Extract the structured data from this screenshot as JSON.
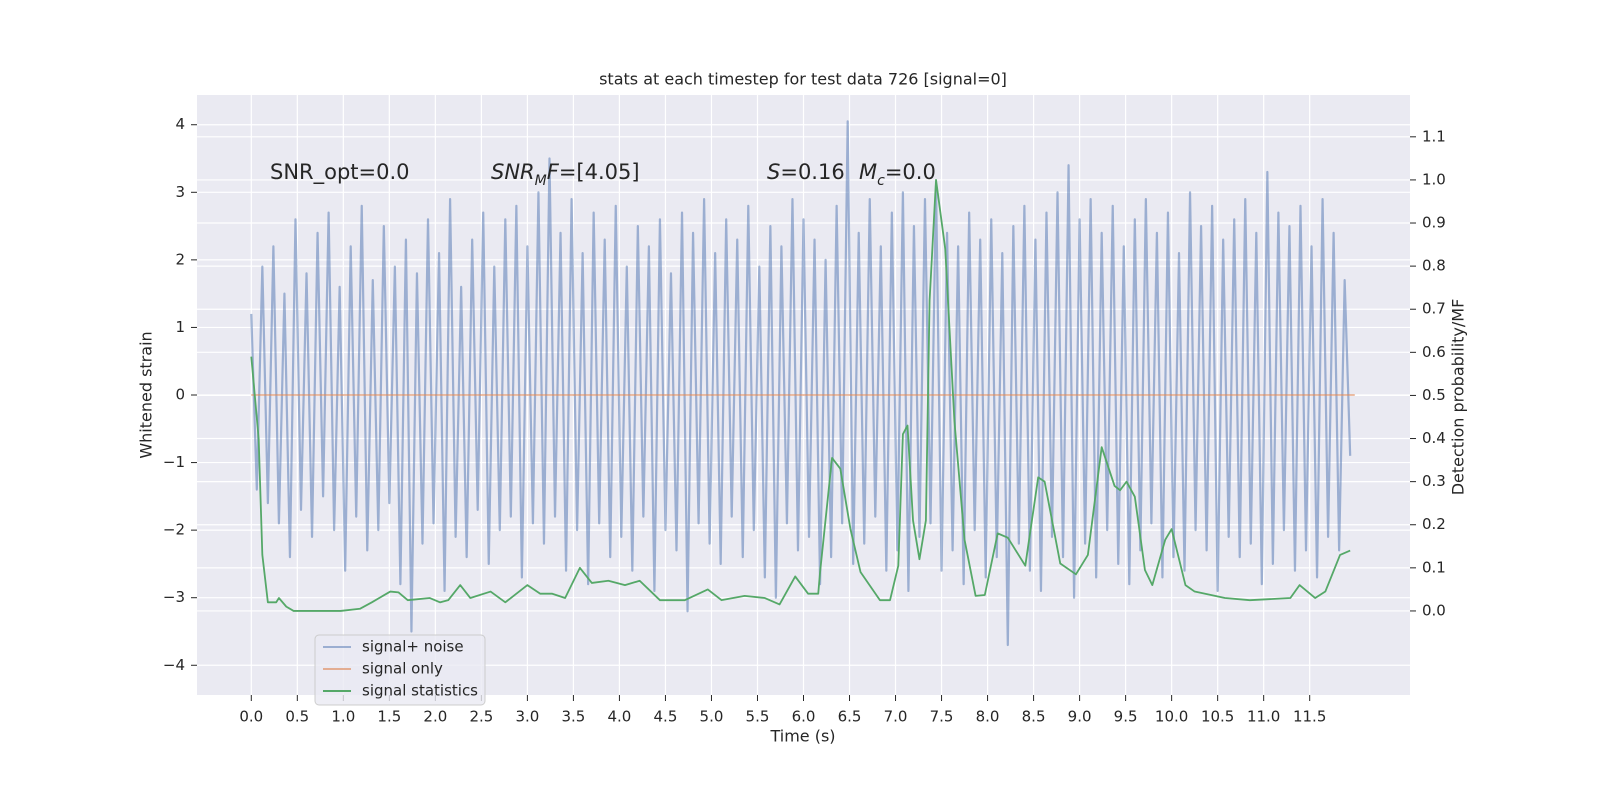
{
  "chart_data": {
    "type": "line",
    "title": "stats at each timestep for test data 726 [signal=0]",
    "xlabel": "Time (s)",
    "ylabel": "Whitened strain",
    "y2label": "Detection probability/MF",
    "xlim": [
      -0.59,
      12.59
    ],
    "ylim": [
      -4.44,
      4.44
    ],
    "y2lim": [
      -0.195,
      1.197
    ],
    "xticks": [
      {
        "value": 0,
        "label": "0.0"
      },
      0.5,
      {
        "value": 1,
        "label": "1.0"
      },
      1.5,
      {
        "value": 2,
        "label": "2.0"
      },
      2.5,
      {
        "value": 3,
        "label": "3.0"
      },
      3.5,
      {
        "value": 4,
        "label": "4.0"
      },
      4.5,
      {
        "value": 5,
        "label": "5.0"
      },
      5.5,
      {
        "value": 6,
        "label": "6.0"
      },
      6.5,
      {
        "value": 7,
        "label": "7.0"
      },
      7.5,
      {
        "value": 8,
        "label": "8.0"
      },
      8.5,
      {
        "value": 9,
        "label": "9.0"
      },
      9.5,
      {
        "value": 10,
        "label": "10.0"
      },
      10.5,
      {
        "value": 11,
        "label": "11.0"
      },
      11.5
    ],
    "yticks": [
      {
        "value": -4,
        "label": "−4"
      },
      {
        "value": -3,
        "label": "−3"
      },
      {
        "value": -2,
        "label": "−2"
      },
      {
        "value": -1,
        "label": "−1"
      },
      0,
      1,
      2,
      3,
      4
    ],
    "y2ticks": [
      {
        "value": 0,
        "label": "0.0"
      },
      0.1,
      0.2,
      0.3,
      0.4,
      0.5,
      0.6,
      0.7,
      0.8,
      0.9,
      {
        "value": 1,
        "label": "1.0"
      },
      1.1
    ],
    "grid": true,
    "y2grid": true,
    "background": "#eaeaf2",
    "legend": "lower left",
    "annotations": [
      [
        {
          "text": "SNR_opt=0.0"
        }
      ],
      [
        {
          "text": "SNR",
          "style": "italic"
        },
        {
          "text": "M",
          "style": "italic-sub"
        },
        {
          "text": "F",
          "style": "italic"
        },
        {
          "text": "=[4.05]"
        }
      ],
      [
        {
          "text": "S",
          "style": "italic"
        },
        {
          "text": "=0.16"
        }
      ],
      [
        {
          "text": "M",
          "style": "italic"
        },
        {
          "text": "c",
          "style": "italic-sub"
        },
        {
          "text": "=0.0"
        }
      ]
    ],
    "series": [
      {
        "name": "signal+ noise",
        "color": "#4c72b0",
        "opacity": 0.5,
        "axis": "y",
        "x": [
          0,
          0.06,
          0.12,
          0.18,
          0.24,
          0.3,
          0.36,
          0.42,
          0.48,
          0.54,
          0.6,
          0.66,
          0.72,
          0.78,
          0.84,
          0.9,
          0.96,
          1.02,
          1.08,
          1.14,
          1.2,
          1.26,
          1.32,
          1.38,
          1.44,
          1.5,
          1.56,
          1.62,
          1.68,
          1.74,
          1.8,
          1.86,
          1.92,
          1.98,
          2.04,
          2.1,
          2.16,
          2.22,
          2.28,
          2.34,
          2.4,
          2.46,
          2.52,
          2.58,
          2.64,
          2.7,
          2.76,
          2.82,
          2.88,
          2.94,
          3,
          3.06,
          3.12,
          3.18,
          3.24,
          3.3,
          3.36,
          3.42,
          3.48,
          3.54,
          3.6,
          3.66,
          3.72,
          3.78,
          3.84,
          3.9,
          3.96,
          4.02,
          4.08,
          4.14,
          4.2,
          4.26,
          4.32,
          4.38,
          4.44,
          4.5,
          4.56,
          4.62,
          4.68,
          4.74,
          4.8,
          4.86,
          4.92,
          4.98,
          5.04,
          5.1,
          5.16,
          5.22,
          5.28,
          5.34,
          5.4,
          5.46,
          5.52,
          5.58,
          5.64,
          5.7,
          5.76,
          5.82,
          5.88,
          5.94,
          6,
          6.06,
          6.12,
          6.18,
          6.24,
          6.3,
          6.36,
          6.42,
          6.48,
          6.54,
          6.6,
          6.66,
          6.72,
          6.78,
          6.84,
          6.9,
          6.96,
          7.02,
          7.08,
          7.14,
          7.2,
          7.26,
          7.32,
          7.38,
          7.44,
          7.5,
          7.56,
          7.62,
          7.68,
          7.74,
          7.8,
          7.86,
          7.92,
          7.98,
          8.04,
          8.1,
          8.16,
          8.22,
          8.28,
          8.34,
          8.4,
          8.46,
          8.52,
          8.58,
          8.64,
          8.7,
          8.76,
          8.82,
          8.88,
          8.94,
          9,
          9.06,
          9.12,
          9.18,
          9.24,
          9.3,
          9.36,
          9.42,
          9.48,
          9.54,
          9.6,
          9.66,
          9.72,
          9.78,
          9.84,
          9.9,
          9.96,
          10.02,
          10.08,
          10.14,
          10.2,
          10.26,
          10.32,
          10.38,
          10.44,
          10.5,
          10.56,
          10.62,
          10.68,
          10.74,
          10.8,
          10.86,
          10.92,
          10.98,
          11.04,
          11.1,
          11.16,
          11.22,
          11.28,
          11.34,
          11.4,
          11.46,
          11.52,
          11.58,
          11.64,
          11.7,
          11.76,
          11.82,
          11.88,
          11.94
        ],
        "values": [
          1.2,
          -1.4,
          1.9,
          -1.6,
          2.2,
          -1.9,
          1.5,
          -2.4,
          2.6,
          -1.7,
          1.8,
          -2.1,
          2.4,
          -1.5,
          2.7,
          -2.0,
          1.6,
          -2.6,
          2.2,
          -1.8,
          2.8,
          -2.3,
          1.7,
          -2.0,
          2.5,
          -1.6,
          1.9,
          -2.8,
          2.3,
          -3.5,
          1.8,
          -2.2,
          2.6,
          -1.9,
          2.1,
          -2.9,
          2.9,
          -2.1,
          1.6,
          -2.4,
          2.3,
          -1.7,
          2.7,
          -2.5,
          1.9,
          -2.0,
          2.6,
          -1.8,
          2.8,
          -2.7,
          2.2,
          -1.9,
          3.0,
          -2.2,
          3.5,
          -1.8,
          2.4,
          -2.6,
          2.9,
          -2.0,
          2.1,
          -2.8,
          2.7,
          -1.9,
          2.3,
          -2.4,
          2.8,
          -2.1,
          1.9,
          -2.6,
          2.5,
          -1.8,
          2.2,
          -2.9,
          2.6,
          -2.0,
          1.8,
          -2.3,
          2.7,
          -3.2,
          2.4,
          -1.9,
          2.9,
          -2.2,
          2.1,
          -2.5,
          2.6,
          -1.8,
          2.3,
          -2.4,
          2.8,
          -2.0,
          1.9,
          -2.7,
          2.5,
          -3.0,
          2.2,
          -1.9,
          2.9,
          -2.3,
          2.6,
          -2.1,
          2.3,
          -2.8,
          2.0,
          -2.4,
          2.8,
          -1.9,
          4.05,
          -2.5,
          2.4,
          -2.2,
          2.9,
          -1.8,
          2.2,
          -2.6,
          2.7,
          -2.3,
          3.0,
          -2.9,
          2.5,
          -2.1,
          2.9,
          -1.9,
          3.1,
          -2.6,
          2.4,
          -2.3,
          2.2,
          -2.8,
          2.7,
          -2.0,
          2.3,
          -2.7,
          2.6,
          -2.4,
          2.1,
          -3.7,
          2.5,
          -2.2,
          2.8,
          -2.6,
          2.3,
          -2.9,
          2.7,
          -2.1,
          3.0,
          -2.4,
          3.4,
          -3.0,
          2.6,
          -2.2,
          2.9,
          -2.7,
          2.4,
          -2.0,
          2.8,
          -2.5,
          2.2,
          -2.8,
          2.6,
          -2.3,
          2.9,
          -1.9,
          2.4,
          -2.7,
          2.7,
          -2.4,
          2.1,
          -2.6,
          3.0,
          -2.0,
          2.5,
          -2.3,
          2.8,
          -2.9,
          2.3,
          -2.1,
          2.6,
          -2.4,
          2.9,
          -2.2,
          2.4,
          -2.8,
          3.3,
          -2.5,
          2.7,
          -2.0,
          2.5,
          -2.6,
          2.8,
          -2.3,
          2.2,
          -2.7,
          2.9,
          -2.1,
          2.4,
          -2.3,
          1.7,
          -0.9
        ]
      },
      {
        "name": "signal only",
        "color": "#dd8452",
        "opacity": 0.6,
        "axis": "y",
        "x": [
          0,
          11.99
        ],
        "values": [
          0,
          0
        ]
      },
      {
        "name": "signal statistics",
        "color": "#55a868",
        "opacity": 1,
        "axis": "y2",
        "x": [
          0,
          0.08,
          0.12,
          0.18,
          0.27,
          0.3,
          0.38,
          0.46,
          0.64,
          0.97,
          1.18,
          1.31,
          1.51,
          1.6,
          1.7,
          1.94,
          2.05,
          2.14,
          2.27,
          2.38,
          2.6,
          2.76,
          3.0,
          3.14,
          3.27,
          3.41,
          3.57,
          3.7,
          3.88,
          4.06,
          4.22,
          4.44,
          4.71,
          4.96,
          5.11,
          5.36,
          5.58,
          5.74,
          5.91,
          6.05,
          6.16,
          6.18,
          6.31,
          6.4,
          6.51,
          6.62,
          6.83,
          6.94,
          7.03,
          7.08,
          7.13,
          7.19,
          7.26,
          7.33,
          7.37,
          7.44,
          7.54,
          7.64,
          7.75,
          7.87,
          7.97,
          8.11,
          8.22,
          8.41,
          8.55,
          8.62,
          8.79,
          8.96,
          9.09,
          9.24,
          9.38,
          9.44,
          9.51,
          9.6,
          9.71,
          9.79,
          9.93,
          10.0,
          10.15,
          10.25,
          10.58,
          10.85,
          11.29,
          11.39,
          11.56,
          11.67,
          11.83,
          11.94
        ],
        "values": [
          0.59,
          0.4,
          0.13,
          0.02,
          0.02,
          0.03,
          0.01,
          0.0,
          0.0,
          0.0,
          0.005,
          0.02,
          0.045,
          0.043,
          0.025,
          0.03,
          0.02,
          0.025,
          0.06,
          0.03,
          0.045,
          0.02,
          0.06,
          0.04,
          0.04,
          0.03,
          0.1,
          0.065,
          0.07,
          0.06,
          0.07,
          0.025,
          0.025,
          0.05,
          0.025,
          0.035,
          0.03,
          0.015,
          0.08,
          0.04,
          0.04,
          0.09,
          0.355,
          0.33,
          0.19,
          0.09,
          0.025,
          0.025,
          0.105,
          0.41,
          0.43,
          0.21,
          0.12,
          0.21,
          0.72,
          1.0,
          0.84,
          0.44,
          0.165,
          0.035,
          0.037,
          0.18,
          0.17,
          0.105,
          0.31,
          0.3,
          0.11,
          0.085,
          0.13,
          0.38,
          0.29,
          0.28,
          0.3,
          0.265,
          0.095,
          0.06,
          0.165,
          0.19,
          0.06,
          0.045,
          0.03,
          0.025,
          0.03,
          0.06,
          0.03,
          0.045,
          0.13,
          0.14
        ]
      }
    ]
  }
}
